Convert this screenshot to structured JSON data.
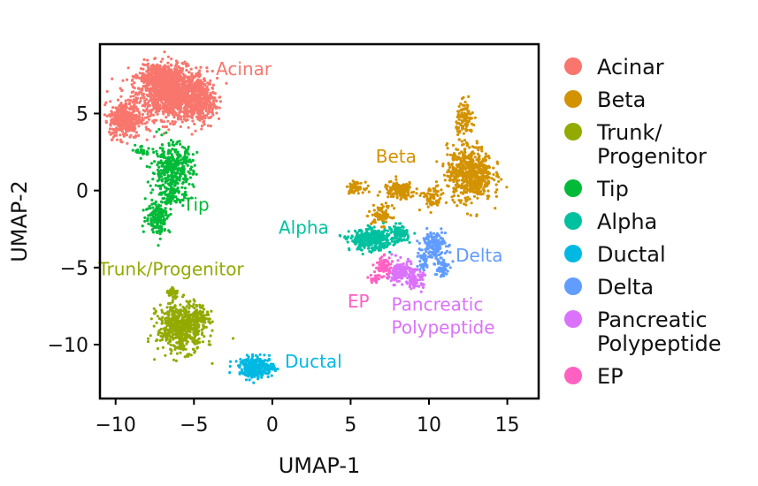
{
  "chart_data": {
    "type": "scatter",
    "title": "",
    "xlabel": "UMAP-1",
    "ylabel": "UMAP-2",
    "xlim": [
      -11,
      17
    ],
    "ylim": [
      -13.5,
      9.5
    ],
    "xticks": [
      -10,
      -5,
      0,
      5,
      10,
      15
    ],
    "yticks": [
      5,
      0,
      -5,
      -10
    ],
    "xtick_labels": [
      "−10",
      "−5",
      "0",
      "5",
      "10",
      "15"
    ],
    "ytick_labels": [
      "5",
      "0",
      "−5",
      "−10"
    ],
    "grid": false,
    "legend_position": "right",
    "series": [
      {
        "name": "Acinar",
        "color": "#F8766D",
        "label": "Acinar",
        "label_at": [
          -3.6,
          7.5
        ],
        "blobs": [
          [
            -6.4,
            6.3,
            2.0,
            1.5,
            1200
          ],
          [
            -7.2,
            7.4,
            1.2,
            0.8,
            300
          ],
          [
            -9.4,
            4.6,
            0.9,
            1.1,
            380
          ],
          [
            -4.6,
            5.8,
            0.9,
            1.3,
            260
          ]
        ]
      },
      {
        "name": "Beta",
        "color": "#D39200",
        "label": "Beta",
        "label_at": [
          6.6,
          1.8
        ],
        "blobs": [
          [
            12.6,
            1.1,
            1.3,
            1.6,
            600
          ],
          [
            12.3,
            4.6,
            0.5,
            1.0,
            110
          ],
          [
            8.1,
            0.0,
            0.9,
            0.5,
            160
          ],
          [
            5.3,
            0.2,
            0.5,
            0.3,
            60
          ],
          [
            7.0,
            -1.6,
            0.6,
            0.6,
            80
          ],
          [
            10.2,
            -0.5,
            0.6,
            0.7,
            70
          ]
        ]
      },
      {
        "name": "Trunk/\nProgenitor",
        "color": "#93AA00",
        "label": "Trunk/Progenitor",
        "label_at": [
          -11.1,
          -5.5
        ],
        "blobs": [
          [
            -5.8,
            -8.9,
            1.4,
            1.4,
            560
          ],
          [
            -4.6,
            -8.1,
            0.5,
            0.5,
            70
          ],
          [
            -6.4,
            -6.6,
            0.3,
            0.4,
            40
          ]
        ]
      },
      {
        "name": "Tip",
        "color": "#00BA38",
        "label": "Tip",
        "label_at": [
          -5.7,
          -1.3
        ],
        "blobs": [
          [
            -6.4,
            1.3,
            1.2,
            1.6,
            380
          ],
          [
            -7.3,
            -1.7,
            0.7,
            1.0,
            160
          ],
          [
            -6.4,
            -0.2,
            0.5,
            0.7,
            60
          ],
          [
            -8.3,
            2.6,
            0.4,
            0.4,
            25
          ]
        ]
      },
      {
        "name": "Alpha",
        "color": "#00C19F",
        "label": "Alpha",
        "label_at": [
          0.4,
          -2.8
        ],
        "blobs": [
          [
            6.3,
            -3.2,
            1.2,
            0.6,
            380
          ],
          [
            8.1,
            -2.8,
            0.5,
            0.5,
            90
          ]
        ]
      },
      {
        "name": "Ductal",
        "color": "#00B9E3",
        "label": "Ductal",
        "label_at": [
          0.8,
          -11.5
        ],
        "blobs": [
          [
            -1.0,
            -11.5,
            1.0,
            0.6,
            320
          ]
        ]
      },
      {
        "name": "Delta",
        "color": "#619CFF",
        "label": "Delta",
        "label_at": [
          11.7,
          -4.6
        ],
        "blobs": [
          [
            10.3,
            -3.5,
            0.7,
            0.8,
            150
          ],
          [
            10.8,
            -5.0,
            0.4,
            0.6,
            60
          ],
          [
            9.6,
            -4.6,
            0.4,
            0.6,
            40
          ]
        ]
      },
      {
        "name": "Pancreatic\nPolypeptide",
        "color": "#DB72FB",
        "label": "Pancreatic\nPolypeptide",
        "label_at": [
          7.6,
          -7.8
        ],
        "blobs": [
          [
            8.4,
            -5.2,
            0.6,
            0.6,
            110
          ],
          [
            9.1,
            -5.8,
            0.5,
            0.5,
            80
          ],
          [
            7.9,
            -5.6,
            0.4,
            0.4,
            40
          ]
        ]
      },
      {
        "name": "EP",
        "color": "#FF61C3",
        "label": "EP",
        "label_at": [
          4.8,
          -7.6
        ],
        "blobs": [
          [
            7.1,
            -4.9,
            0.5,
            0.6,
            70
          ],
          [
            6.6,
            -5.7,
            0.3,
            0.3,
            25
          ]
        ]
      }
    ]
  }
}
